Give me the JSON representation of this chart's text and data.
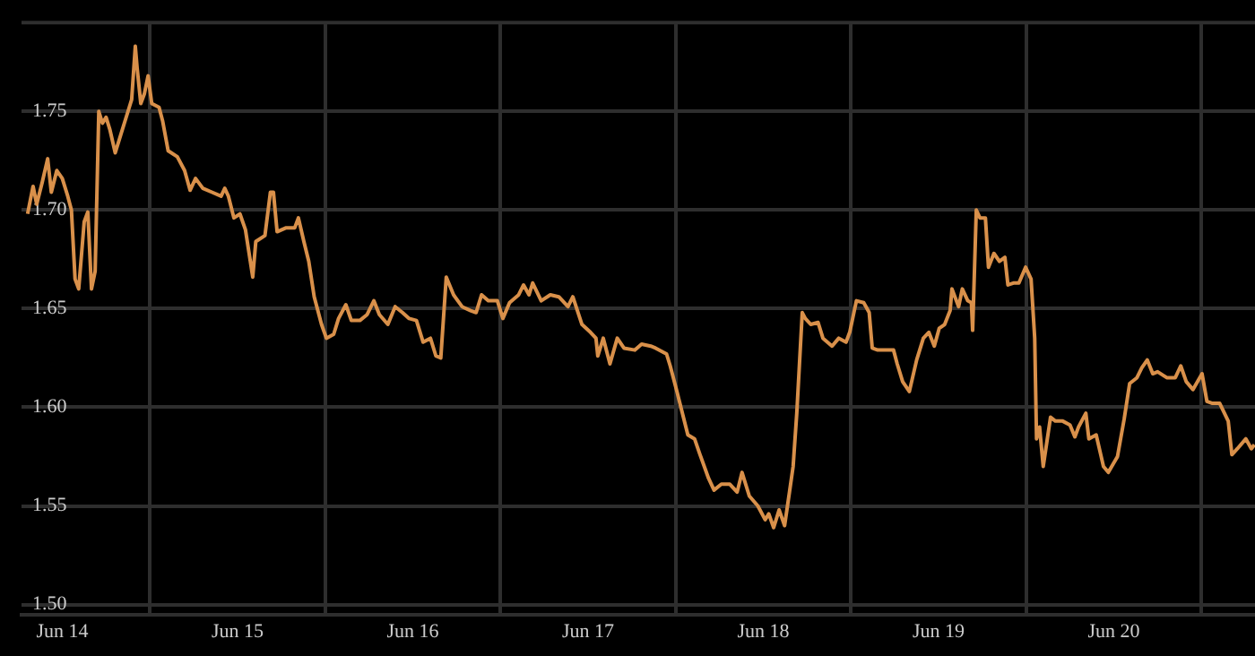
{
  "chart_data": {
    "type": "line",
    "x": [
      "--06-13T19:15",
      "--06-13T20:00",
      "--06-13T20:30",
      "--06-13T21:15",
      "--06-13T22:00",
      "--06-13T22:30",
      "--06-13T23:15",
      "--06-14T00:00",
      "--06-14T00:45",
      "--06-14T01:15",
      "--06-14T01:45",
      "--06-14T02:15",
      "--06-14T03:00",
      "--06-14T03:30",
      "--06-14T04:00",
      "--06-14T04:30",
      "--06-14T05:00",
      "--06-14T05:30",
      "--06-14T06:00",
      "--06-14T06:30",
      "--06-14T07:15",
      "--06-14T08:00",
      "--06-14T09:00",
      "--06-14T09:30",
      "--06-14T10:00",
      "--06-14T10:15",
      "--06-14T10:45",
      "--06-14T11:15",
      "--06-14T11:45",
      "--06-14T12:15",
      "--06-14T13:15",
      "--06-14T13:45",
      "--06-14T14:30",
      "--06-14T15:45",
      "--06-14T16:45",
      "--06-14T17:30",
      "--06-14T18:15",
      "--06-14T19:15",
      "--06-14T20:30",
      "--06-14T21:45",
      "--06-14T22:15",
      "--06-14T22:45",
      "--06-14T23:30",
      "--06-15T00:20",
      "--06-15T01:05",
      "--06-15T02:05",
      "--06-15T02:30",
      "--06-15T03:45",
      "--06-15T04:30",
      "--06-15T04:55",
      "--06-15T05:25",
      "--06-15T06:40",
      "--06-15T07:50",
      "--06-15T08:20",
      "--06-15T09:05",
      "--06-15T09:45",
      "--06-15T10:30",
      "--06-15T11:30",
      "--06-15T12:10",
      "--06-15T13:10",
      "--06-15T13:50",
      "--06-15T14:50",
      "--06-15T15:35",
      "--06-15T16:45",
      "--06-15T17:45",
      "--06-15T18:40",
      "--06-15T19:25",
      "--06-15T20:35",
      "--06-15T21:35",
      "--06-15T22:35",
      "--06-15T23:30",
      "--06-16T00:30",
      "--06-16T01:25",
      "--06-16T02:25",
      "--06-16T03:10",
      "--06-16T03:50",
      "--06-16T04:35",
      "--06-16T05:35",
      "--06-16T06:45",
      "--06-16T07:55",
      "--06-16T08:40",
      "--06-16T09:25",
      "--06-16T10:20",
      "--06-16T11:35",
      "--06-16T12:20",
      "--06-16T13:15",
      "--06-16T14:30",
      "--06-16T15:10",
      "--06-16T15:55",
      "--06-16T16:25",
      "--06-16T17:35",
      "--06-16T18:50",
      "--06-16T20:00",
      "--06-16T21:15",
      "--06-16T21:55",
      "--06-16T23:10",
      "--06-17T00:20",
      "--06-17T01:05",
      "--06-17T01:20",
      "--06-17T02:05",
      "--06-17T03:00",
      "--06-17T04:00",
      "--06-17T04:55",
      "--06-17T06:25",
      "--06-17T07:20",
      "--06-17T08:35",
      "--06-17T09:15",
      "--06-17T10:45",
      "--06-17T11:15",
      "--06-17T12:10",
      "--06-17T12:55",
      "--06-17T13:40",
      "--06-17T14:35",
      "--06-17T15:20",
      "--06-17T16:30",
      "--06-17T17:15",
      "--06-17T18:15",
      "--06-17T19:25",
      "--06-17T20:25",
      "--06-17T21:05",
      "--06-17T22:05",
      "--06-17T23:15",
      "--06-18T00:15",
      "--06-18T00:45",
      "--06-18T01:25",
      "--06-18T02:10",
      "--06-18T02:55",
      "--06-18T03:35",
      "--06-18T04:05",
      "--06-18T04:35",
      "--06-18T05:20",
      "--06-18T05:45",
      "--06-18T06:30",
      "--06-18T07:30",
      "--06-18T08:10",
      "--06-18T09:25",
      "--06-18T10:20",
      "--06-18T11:20",
      "--06-18T11:50",
      "--06-18T12:45",
      "--06-18T13:45",
      "--06-18T14:30",
      "--06-18T14:55",
      "--06-18T15:40",
      "--06-18T16:40",
      "--06-18T17:50",
      "--06-18T18:20",
      "--06-18T19:05",
      "--06-18T20:00",
      "--06-18T21:00",
      "--06-18T21:55",
      "--06-18T22:40",
      "--06-18T23:25",
      "--06-19T00:05",
      "--06-19T00:50",
      "--06-19T01:35",
      "--06-19T01:50",
      "--06-19T02:45",
      "--06-19T03:15",
      "--06-19T04:00",
      "--06-19T04:30",
      "--06-19T04:40",
      "--06-19T05:10",
      "--06-19T05:40",
      "--06-19T06:25",
      "--06-19T06:50",
      "--06-19T07:35",
      "--06-19T08:20",
      "--06-19T09:05",
      "--06-19T09:30",
      "--06-19T10:15",
      "--06-19T11:00",
      "--06-19T11:55",
      "--06-19T12:40",
      "--06-19T13:10",
      "--06-19T13:25",
      "--06-19T13:50",
      "--06-19T14:20",
      "--06-19T15:20",
      "--06-19T16:00",
      "--06-19T17:00",
      "--06-19T18:00",
      "--06-19T18:40",
      "--06-19T19:10",
      "--06-19T20:10",
      "--06-19T20:35",
      "--06-19T21:35",
      "--06-19T22:35",
      "--06-19T23:15",
      "--06-20T00:30",
      "--06-20T01:25",
      "--06-20T02:10",
      "--06-20T03:10",
      "--06-20T03:50",
      "--06-20T04:35",
      "--06-20T05:20",
      "--06-20T06:00",
      "--06-20T07:15",
      "--06-20T08:25",
      "--06-20T09:10",
      "--06-20T09:55",
      "--06-20T10:50",
      "--06-20T12:05",
      "--06-20T12:45",
      "--06-20T13:30",
      "--06-20T14:30",
      "--06-20T15:40",
      "--06-20T16:10",
      "--06-20T16:55",
      "--06-20T18:05",
      "--06-20T18:50",
      "--06-20T19:15"
    ],
    "series": [
      {
        "color": "#d9904a",
        "values": [
          1.698,
          1.712,
          1.703,
          1.714,
          1.726,
          1.709,
          1.72,
          1.716,
          1.707,
          1.7,
          1.665,
          1.66,
          1.694,
          1.699,
          1.66,
          1.669,
          1.75,
          1.744,
          1.747,
          1.741,
          1.729,
          1.738,
          1.75,
          1.756,
          1.783,
          1.772,
          1.754,
          1.759,
          1.768,
          1.754,
          1.752,
          1.745,
          1.73,
          1.727,
          1.72,
          1.71,
          1.716,
          1.711,
          1.709,
          1.707,
          1.711,
          1.707,
          1.696,
          1.698,
          1.69,
          1.666,
          1.684,
          1.687,
          1.709,
          1.709,
          1.689,
          1.691,
          1.691,
          1.696,
          1.684,
          1.674,
          1.656,
          1.642,
          1.635,
          1.637,
          1.645,
          1.652,
          1.644,
          1.644,
          1.647,
          1.654,
          1.647,
          1.642,
          1.651,
          1.648,
          1.645,
          1.644,
          1.633,
          1.635,
          1.626,
          1.625,
          1.666,
          1.657,
          1.651,
          1.649,
          1.648,
          1.657,
          1.654,
          1.654,
          1.645,
          1.653,
          1.657,
          1.662,
          1.657,
          1.663,
          1.654,
          1.657,
          1.656,
          1.651,
          1.656,
          1.642,
          1.638,
          1.635,
          1.626,
          1.635,
          1.622,
          1.635,
          1.63,
          1.629,
          1.632,
          1.631,
          1.63,
          1.627,
          1.621,
          1.608,
          1.597,
          1.586,
          1.584,
          1.576,
          1.564,
          1.558,
          1.561,
          1.561,
          1.557,
          1.567,
          1.555,
          1.55,
          1.543,
          1.546,
          1.539,
          1.548,
          1.54,
          1.557,
          1.57,
          1.597,
          1.648,
          1.645,
          1.642,
          1.643,
          1.635,
          1.631,
          1.635,
          1.633,
          1.638,
          1.654,
          1.653,
          1.648,
          1.63,
          1.629,
          1.629,
          1.629,
          1.622,
          1.613,
          1.608,
          1.624,
          1.635,
          1.638,
          1.631,
          1.64,
          1.642,
          1.649,
          1.66,
          1.651,
          1.66,
          1.654,
          1.653,
          1.639,
          1.7,
          1.696,
          1.696,
          1.671,
          1.678,
          1.674,
          1.676,
          1.662,
          1.663,
          1.663,
          1.671,
          1.665,
          1.635,
          1.584,
          1.59,
          1.57,
          1.595,
          1.593,
          1.593,
          1.591,
          1.585,
          1.59,
          1.597,
          1.584,
          1.586,
          1.57,
          1.567,
          1.575,
          1.594,
          1.612,
          1.615,
          1.62,
          1.624,
          1.617,
          1.618,
          1.615,
          1.615,
          1.621,
          1.613,
          1.609,
          1.617,
          1.603,
          1.602,
          1.602,
          1.593,
          1.576,
          1.579,
          1.584,
          1.579,
          1.581
        ]
      }
    ],
    "xlim": [
      "--06-13T18:25",
      "--06-20T19:20"
    ],
    "xticks": [
      {
        "value": "--06-14",
        "label": "Jun 14"
      },
      {
        "value": "--06-14T12:00",
        "label": null
      },
      {
        "value": "--06-15",
        "label": "Jun 15"
      },
      {
        "value": "--06-15T12:00",
        "label": null
      },
      {
        "value": "--06-16",
        "label": "Jun 16"
      },
      {
        "value": "--06-16T12:00",
        "label": null
      },
      {
        "value": "--06-17",
        "label": "Jun 17"
      },
      {
        "value": "--06-17T12:00",
        "label": null
      },
      {
        "value": "--06-18",
        "label": "Jun 18"
      },
      {
        "value": "--06-18T12:00",
        "label": null
      },
      {
        "value": "--06-19",
        "label": "Jun 19"
      },
      {
        "value": "--06-19T12:00",
        "label": null
      },
      {
        "value": "--06-20",
        "label": "Jun 20"
      },
      {
        "value": "--06-20T12:00",
        "label": null
      }
    ],
    "ylim": [
      1.495,
      1.795
    ],
    "yticks": [
      {
        "value": 1.5,
        "label": "1.50"
      },
      {
        "value": 1.55,
        "label": "1.55"
      },
      {
        "value": 1.6,
        "label": "1.60"
      },
      {
        "value": 1.65,
        "label": "1.65"
      },
      {
        "value": 1.7,
        "label": "1.70"
      },
      {
        "value": 1.75,
        "label": "1.75"
      }
    ],
    "grid": true,
    "legend": false,
    "marker": "none",
    "line_style": "solid"
  }
}
